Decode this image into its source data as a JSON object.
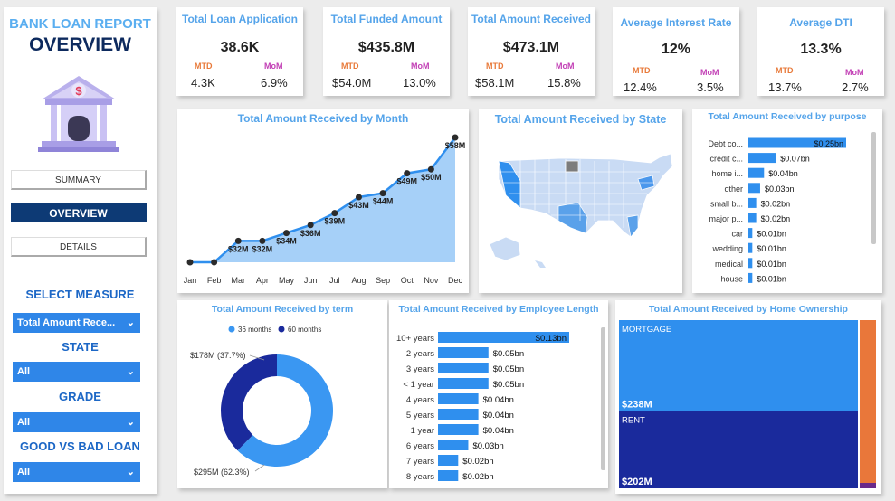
{
  "sidebar": {
    "title_line1": "BANK LOAN REPORT",
    "title_line2": "OVERVIEW",
    "nav": [
      {
        "label": "SUMMARY",
        "active": false
      },
      {
        "label": "OVERVIEW",
        "active": true
      },
      {
        "label": "DETAILS",
        "active": false
      }
    ],
    "select_measure_label": "SELECT MEASURE",
    "measure_value": "Total Amount Rece...",
    "state_label": "STATE",
    "state_value": "All",
    "grade_label": "GRADE",
    "grade_value": "All",
    "loan_label": "GOOD VS BAD LOAN",
    "loan_value": "All",
    "bank_icon_symbol": "$",
    "icon": "bank-icon"
  },
  "kpis": [
    {
      "title": "Total Loan Application",
      "value": "38.6K",
      "mtd_label": "MTD",
      "mom_label": "MoM",
      "mtd": "4.3K",
      "mom": "6.9%"
    },
    {
      "title": "Total Funded Amount",
      "value": "$435.8M",
      "mtd_label": "MTD",
      "mom_label": "MoM",
      "mtd": "$54.0M",
      "mom": "13.0%"
    },
    {
      "title": "Total Amount Received",
      "value": "$473.1M",
      "mtd_label": "MTD",
      "mom_label": "MoM",
      "mtd": "$58.1M",
      "mom": "15.8%"
    },
    {
      "title": "Average Interest Rate",
      "value": "12%",
      "mtd_label": "MTD",
      "mom_label": "MoM",
      "mtd": "12.4%",
      "mom": "3.5%"
    },
    {
      "title": "Average DTI",
      "value": "13.3%",
      "mtd_label": "MTD",
      "mom_label": "MoM",
      "mtd": "13.7%",
      "mom": "2.7%"
    }
  ],
  "colors": {
    "mtd": "#e87a3a",
    "mom": "#c23fb5",
    "accent": "#55a4ea",
    "bar": "#2f8fee",
    "navy": "#1a2a9c"
  },
  "map_title": "Total Amount Received by State",
  "chart_data": [
    {
      "type": "area",
      "title": "Total Amount Received by Month",
      "categories": [
        "Jan",
        "Feb",
        "Mar",
        "Apr",
        "May",
        "Jun",
        "Jul",
        "Aug",
        "Sep",
        "Oct",
        "Nov",
        "Dec"
      ],
      "values": [
        null,
        null,
        32,
        32,
        34,
        36,
        39,
        43,
        44,
        49,
        50,
        58
      ],
      "labels": [
        "",
        "",
        "$32M",
        "$32M",
        "$34M",
        "$36M",
        "$39M",
        "$43M",
        "$44M",
        "$49M",
        "$50M",
        "$58M"
      ]
    },
    {
      "type": "bar",
      "title": "Total Amount Received by purpose",
      "categories": [
        "Debt co...",
        "credit c...",
        "home i...",
        "other",
        "small b...",
        "major p...",
        "car",
        "wedding",
        "medical",
        "house"
      ],
      "values": [
        0.25,
        0.07,
        0.04,
        0.03,
        0.02,
        0.02,
        0.01,
        0.01,
        0.01,
        0.01
      ],
      "labels": [
        "$0.25bn",
        "$0.07bn",
        "$0.04bn",
        "$0.03bn",
        "$0.02bn",
        "$0.02bn",
        "$0.01bn",
        "$0.01bn",
        "$0.01bn",
        "$0.01bn"
      ]
    },
    {
      "type": "pie",
      "title": "Total Amount Received by term",
      "legend": [
        "36 months",
        "60 months"
      ],
      "values": [
        295,
        178
      ],
      "labels": [
        "$295M (62.3%)",
        "$178M (37.7%)"
      ]
    },
    {
      "type": "bar",
      "title": "Total Amount Received by Employee Length",
      "categories": [
        "10+ years",
        "2 years",
        "3 years",
        "< 1 year",
        "4 years",
        "5 years",
        "1 year",
        "6 years",
        "7 years",
        "8 years"
      ],
      "values": [
        0.13,
        0.05,
        0.05,
        0.05,
        0.04,
        0.04,
        0.04,
        0.03,
        0.02,
        0.02
      ],
      "labels": [
        "$0.13bn",
        "$0.05bn",
        "$0.05bn",
        "$0.05bn",
        "$0.04bn",
        "$0.04bn",
        "$0.04bn",
        "$0.03bn",
        "$0.02bn",
        "$0.02bn"
      ]
    },
    {
      "type": "heatmap",
      "title": "Total Amount Received by Home Ownership",
      "categories": [
        "MORTGAGE",
        "RENT"
      ],
      "values": [
        238,
        202
      ],
      "labels": [
        "$238M",
        "$202M"
      ]
    }
  ]
}
